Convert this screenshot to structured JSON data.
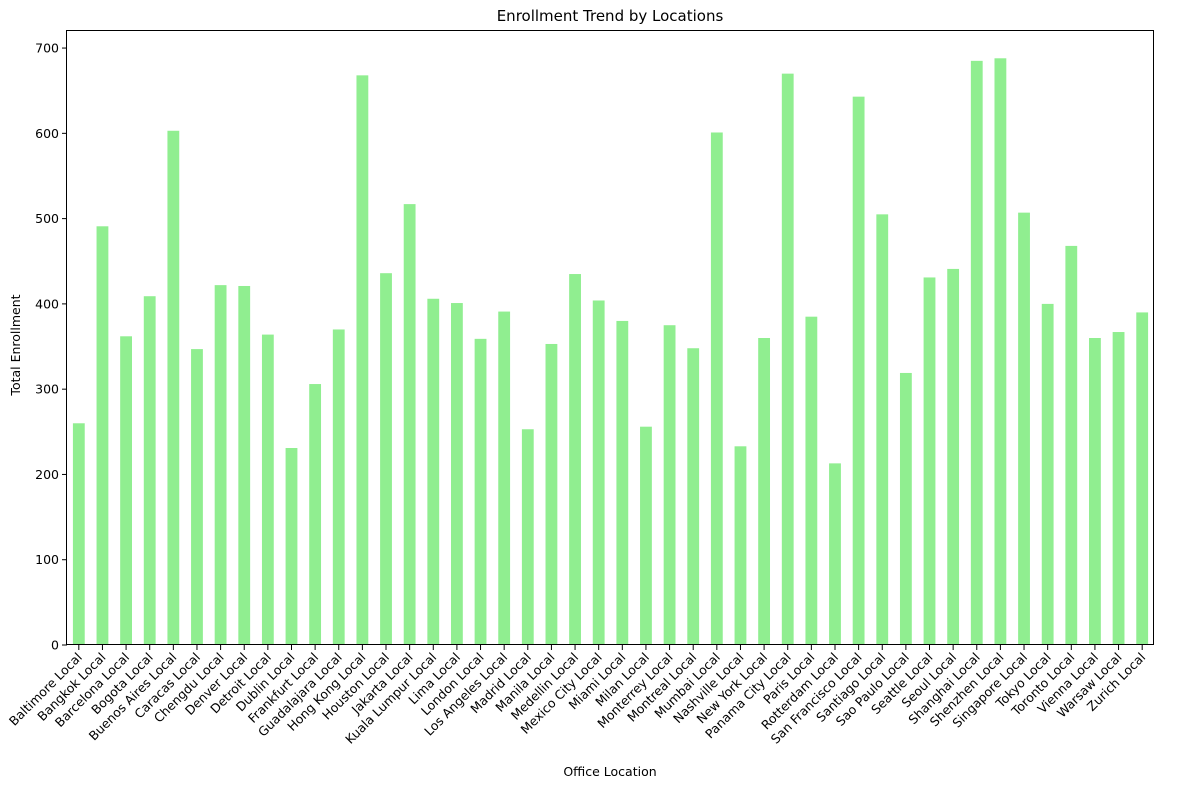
{
  "chart_data": {
    "type": "bar",
    "title": "Enrollment Trend by Locations",
    "xlabel": "Office Location",
    "ylabel": "Total Enrollment",
    "ylim": [
      0,
      720
    ],
    "yticks": [
      0,
      100,
      200,
      300,
      400,
      500,
      600,
      700
    ],
    "grid": false,
    "bar_color": "#90ee90",
    "categories": [
      "Baltimore Local",
      "Bangkok Local",
      "Barcelona Local",
      "Bogota Local",
      "Buenos Aires Local",
      "Caracas Local",
      "Chengdu Local",
      "Denver Local",
      "Detroit Local",
      "Dublin Local",
      "Frankfurt Local",
      "Guadalajara Local",
      "Hong Kong Local",
      "Houston Local",
      "Jakarta Local",
      "Kuala Lumpur Local",
      "Lima Local",
      "London Local",
      "Los Angeles Local",
      "Madrid Local",
      "Manila Local",
      "Medellin Local",
      "Mexico City Local",
      "Miami Local",
      "Milan Local",
      "Monterrey Local",
      "Montreal Local",
      "Mumbai Local",
      "Nashville Local",
      "New York Local",
      "Panama City Local",
      "Paris Local",
      "Rotterdam Local",
      "San Francisco Local",
      "Santiago Local",
      "Sao Paulo Local",
      "Seattle Local",
      "Seoul Local",
      "Shanghai Local",
      "Shenzhen Local",
      "Singapore Local",
      "Tokyo Local",
      "Toronto Local",
      "Vienna Local",
      "Warsaw Local",
      "Zurich Local"
    ],
    "values": [
      260,
      491,
      362,
      409,
      603,
      347,
      422,
      421,
      364,
      231,
      306,
      370,
      668,
      436,
      517,
      406,
      401,
      359,
      391,
      253,
      353,
      435,
      404,
      380,
      256,
      375,
      348,
      601,
      233,
      360,
      670,
      385,
      213,
      643,
      505,
      319,
      431,
      441,
      685,
      688,
      507,
      400,
      468,
      360,
      367,
      390
    ]
  }
}
